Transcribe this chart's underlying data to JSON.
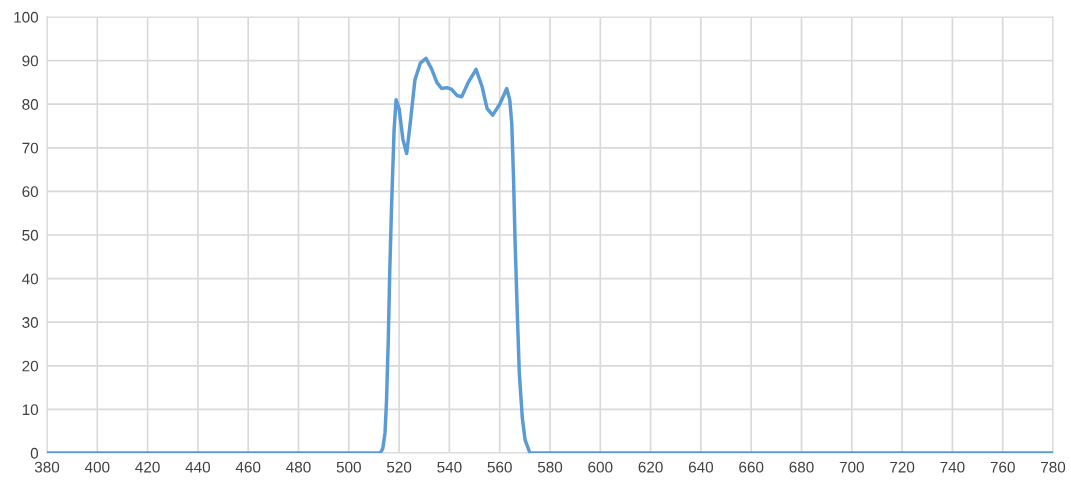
{
  "chart_data": {
    "type": "line",
    "x": [
      380,
      512.5,
      513.5,
      514.4,
      515,
      515.7,
      516.3,
      517,
      518,
      518.8,
      520,
      521.5,
      523,
      524.5,
      526.3,
      528.5,
      530.7,
      533,
      535,
      536.9,
      539,
      540.9,
      543,
      544.9,
      547.5,
      550.6,
      553,
      555,
      557.2,
      560,
      562.8,
      564,
      564.8,
      565.5,
      566.1,
      567,
      567.8,
      569,
      570.1,
      572,
      780
    ],
    "series": [
      {
        "color": "#5b9bd5",
        "values": [
          0,
          0,
          1,
          4.6,
          12,
          25.9,
          42,
          56.5,
          74,
          81,
          79,
          72,
          68.7,
          76,
          85.6,
          89.5,
          90.5,
          88,
          85,
          83.6,
          83.8,
          83.4,
          82,
          81.7,
          85,
          88,
          84,
          79,
          77.5,
          80,
          83.6,
          81,
          75.6,
          63,
          48.9,
          32,
          18.3,
          8,
          3,
          0,
          0
        ]
      }
    ],
    "xlim": [
      380,
      780
    ],
    "ylim": [
      0,
      100
    ],
    "xticks": [
      380,
      400,
      420,
      440,
      460,
      480,
      500,
      520,
      540,
      560,
      580,
      600,
      620,
      640,
      660,
      680,
      700,
      720,
      740,
      760,
      780
    ],
    "yticks": [
      0,
      10,
      20,
      30,
      40,
      50,
      60,
      70,
      80,
      90,
      100
    ],
    "grid": true,
    "marker": "none",
    "line_style": "solid"
  }
}
